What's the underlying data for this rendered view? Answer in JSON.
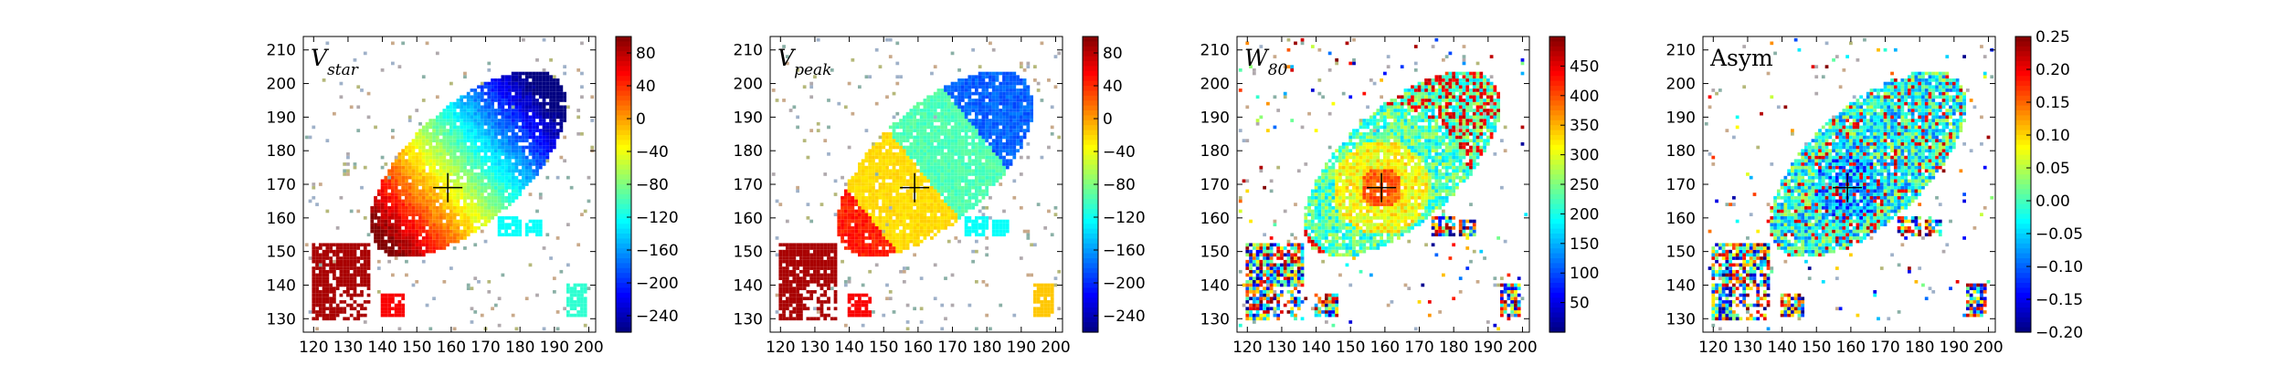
{
  "figure": {
    "panels": [
      {
        "title": "V",
        "title_sub": "star"
      },
      {
        "title": "V",
        "title_sub": "peak"
      },
      {
        "title": "W",
        "title_sub": "80"
      },
      {
        "title": "Asym",
        "title_sub": ""
      }
    ]
  },
  "chart_data": [
    {
      "type": "heatmap",
      "title": "V_star",
      "xlim": [
        117,
        202
      ],
      "ylim": [
        126,
        214
      ],
      "x_ticks": [
        "120",
        "130",
        "140",
        "150",
        "160",
        "170",
        "180",
        "190",
        "200"
      ],
      "y_ticks": [
        "130",
        "140",
        "150",
        "160",
        "170",
        "180",
        "190",
        "200",
        "210"
      ],
      "colormap": "jet",
      "colorbar": {
        "vmin": -260,
        "vmax": 100,
        "ticks": [
          "80",
          "40",
          "0",
          "−40",
          "−80",
          "−120",
          "−160",
          "−200",
          "−240"
        ]
      },
      "marker": {
        "x": 159,
        "y": 169,
        "shape": "cross"
      },
      "grid": false
    },
    {
      "type": "heatmap",
      "title": "V_peak",
      "xlim": [
        117,
        202
      ],
      "ylim": [
        126,
        214
      ],
      "x_ticks": [
        "120",
        "130",
        "140",
        "150",
        "160",
        "170",
        "180",
        "190",
        "200"
      ],
      "y_ticks": [
        "130",
        "140",
        "150",
        "160",
        "170",
        "180",
        "190",
        "200",
        "210"
      ],
      "colormap": "jet",
      "colorbar": {
        "vmin": -260,
        "vmax": 100,
        "ticks": [
          "80",
          "40",
          "0",
          "−40",
          "−80",
          "−120",
          "−160",
          "−200",
          "−240"
        ]
      },
      "marker": {
        "x": 159,
        "y": 169,
        "shape": "cross"
      },
      "grid": false
    },
    {
      "type": "heatmap",
      "title": "W_80",
      "xlim": [
        117,
        202
      ],
      "ylim": [
        126,
        214
      ],
      "x_ticks": [
        "120",
        "130",
        "140",
        "150",
        "160",
        "170",
        "180",
        "190",
        "200"
      ],
      "y_ticks": [
        "130",
        "140",
        "150",
        "160",
        "170",
        "180",
        "190",
        "200",
        "210"
      ],
      "colormap": "jet",
      "colorbar": {
        "vmin": 0,
        "vmax": 500,
        "ticks": [
          "450",
          "400",
          "350",
          "300",
          "250",
          "200",
          "150",
          "100",
          "50"
        ]
      },
      "marker": {
        "x": 159,
        "y": 169,
        "shape": "cross"
      },
      "grid": false
    },
    {
      "type": "heatmap",
      "title": "Asym",
      "xlim": [
        117,
        202
      ],
      "ylim": [
        126,
        214
      ],
      "x_ticks": [
        "120",
        "130",
        "140",
        "150",
        "160",
        "170",
        "180",
        "190",
        "200"
      ],
      "y_ticks": [
        "130",
        "140",
        "150",
        "160",
        "170",
        "180",
        "190",
        "200",
        "210"
      ],
      "colormap": "jet",
      "colorbar": {
        "vmin": -0.2,
        "vmax": 0.25,
        "ticks": [
          "0.25",
          "0.20",
          "0.15",
          "0.10",
          "0.05",
          "0.00",
          "−0.05",
          "−0.10",
          "−0.15",
          "−0.20"
        ]
      },
      "marker": {
        "x": 159,
        "y": 169,
        "shape": "cross"
      },
      "grid": false
    }
  ]
}
